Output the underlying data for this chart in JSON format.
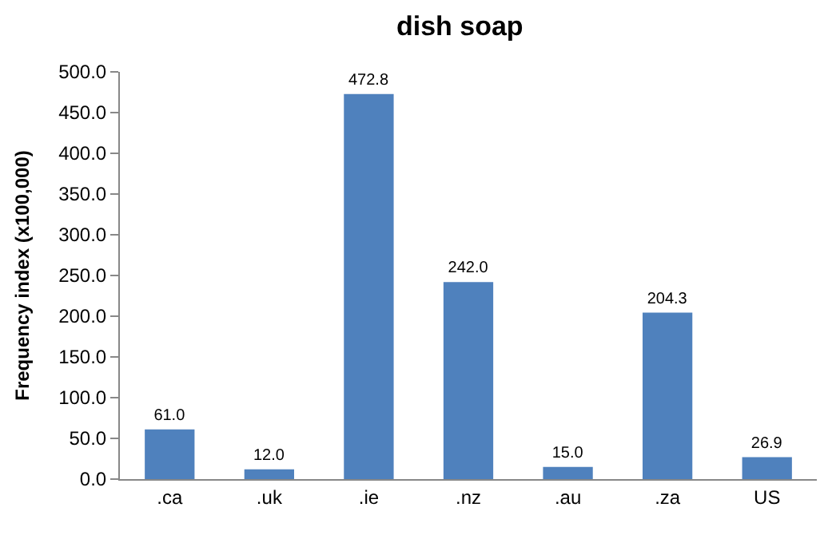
{
  "chart_data": {
    "type": "bar",
    "title": "dish soap",
    "ylabel": "Frequency index (x100,000)",
    "categories": [
      ".ca",
      ".uk",
      ".ie",
      ".nz",
      ".au",
      ".za",
      "US"
    ],
    "values": [
      61.0,
      12.0,
      472.8,
      242.0,
      15.0,
      204.3,
      26.9
    ],
    "value_labels": [
      "61.0",
      "12.0",
      "472.8",
      "242.0",
      "15.0",
      "204.3",
      "26.9"
    ],
    "color": "#4f81bd",
    "ylim": [
      0,
      500
    ],
    "yticks": [
      {
        "value": 0,
        "label": "0.0"
      },
      {
        "value": 50,
        "label": "50.0"
      },
      {
        "value": 100,
        "label": "100.0"
      },
      {
        "value": 150,
        "label": "150.0"
      },
      {
        "value": 200,
        "label": "200.0"
      },
      {
        "value": 250,
        "label": "250.0"
      },
      {
        "value": 300,
        "label": "300.0"
      },
      {
        "value": 350,
        "label": "350.0"
      },
      {
        "value": 400,
        "label": "400.0"
      },
      {
        "value": 450,
        "label": "450.0"
      },
      {
        "value": 500,
        "label": "500.0"
      }
    ],
    "legend": false
  }
}
